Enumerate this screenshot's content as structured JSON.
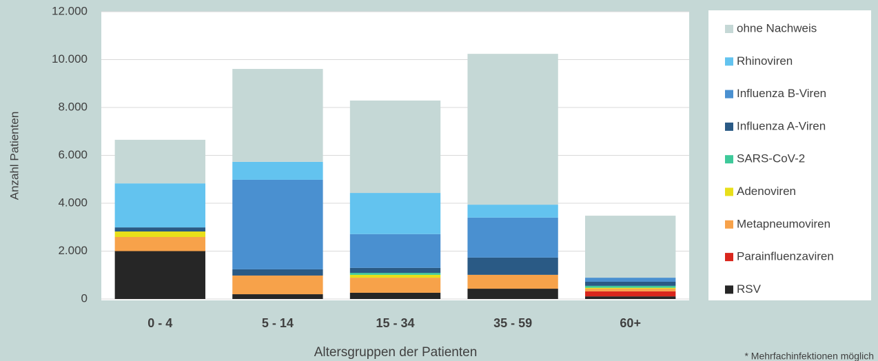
{
  "chart_data": {
    "type": "stacked-bar",
    "y_label": "Anzahl Patienten",
    "x_label": "Altersgruppen der Patienten",
    "footnote": "* Mehrfachinfektionen möglich",
    "categories": [
      "0 - 4",
      "5 - 14",
      "15 - 34",
      "35 - 59",
      "60+"
    ],
    "series": [
      {
        "name": "RSV",
        "color": "#262626",
        "values": [
          2000,
          200,
          260,
          430,
          110
        ]
      },
      {
        "name": "Parainfluenzaviren",
        "color": "#d9261c",
        "values": [
          0,
          0,
          0,
          0,
          210
        ]
      },
      {
        "name": "Metapneumoviren",
        "color": "#f7a24a",
        "values": [
          590,
          780,
          630,
          580,
          110
        ]
      },
      {
        "name": "Adenoviren",
        "color": "#e8df1a",
        "values": [
          230,
          0,
          120,
          0,
          40
        ]
      },
      {
        "name": "SARS-CoV-2",
        "color": "#3ec99a",
        "values": [
          0,
          0,
          80,
          0,
          80
        ]
      },
      {
        "name": "Influenza A-Viren",
        "color": "#2a5a85",
        "values": [
          170,
          260,
          210,
          720,
          170
        ]
      },
      {
        "name": "Influenza B-Viren",
        "color": "#4a90d0",
        "values": [
          0,
          3740,
          1410,
          1670,
          170
        ]
      },
      {
        "name": "Rhinoviren",
        "color": "#63c3ef",
        "values": [
          1840,
          750,
          1720,
          540,
          0
        ]
      },
      {
        "name": "ohne Nachweis",
        "color": "#c5d8d6",
        "values": [
          1820,
          3880,
          3860,
          6300,
          2590
        ]
      }
    ],
    "ylim": [
      0,
      12000
    ],
    "yticks": [
      0,
      {
        "value": 2000,
        "label": "2.000"
      },
      {
        "value": 4000,
        "label": "4.000"
      },
      {
        "value": 6000,
        "label": "6.000"
      },
      {
        "value": 8000,
        "label": "8.000"
      },
      {
        "value": 10000,
        "label": "10.000"
      },
      {
        "value": 12000,
        "label": "12.000"
      }
    ],
    "grid": true,
    "legend": "right"
  }
}
